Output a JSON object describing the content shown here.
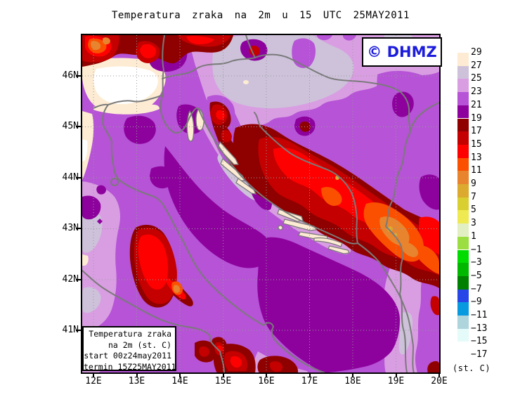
{
  "title": "Temperatura zraka na 2m u 15 UTC 25MAY2011",
  "watermark": {
    "text": "© DHMZ",
    "color": "#1c1cdc"
  },
  "info_box": {
    "lines": [
      "Temperatura zraka",
      "na 2m (st. C)",
      "start 00z24may2011",
      "termin 15Z25MAY2011"
    ]
  },
  "axes": {
    "lat_labels": [
      "46N",
      "45N",
      "44N",
      "43N",
      "42N",
      "41N"
    ],
    "lon_labels": [
      "12E",
      "13E",
      "14E",
      "15E",
      "16E",
      "17E",
      "18E",
      "19E",
      "20E"
    ]
  },
  "legend": {
    "unit_label": "(st. C)",
    "boundaries": [
      29,
      27,
      25,
      23,
      21,
      19,
      17,
      15,
      13,
      11,
      9,
      7,
      5,
      3,
      1,
      -1,
      -3,
      -5,
      -7,
      -9,
      -11,
      -13,
      -15,
      -17
    ],
    "band_order_top_to_bottom": [
      "white",
      "cream",
      "graylav",
      "ltorchid",
      "mdorchid",
      "dkpurple",
      "maroon",
      "dkred",
      "red",
      "orangered",
      "orange",
      "goldenrod",
      "dkyellow",
      "yellow",
      "palegreen",
      "yellowgreen",
      "brightgreen",
      "green",
      "dkgreen",
      "blue",
      "azure",
      "palebluegray",
      "palecyan",
      "white",
      "white"
    ],
    "band_colors": {
      "white": "#ffffff",
      "cream": "#fdecd3",
      "graylav": "#cdc2da",
      "ltorchid": "#d99ee2",
      "mdorchid": "#b653d6",
      "dkpurple": "#8d029d",
      "maroon": "#8f0000",
      "dkred": "#c40000",
      "red": "#fe0000",
      "orangered": "#fa5000",
      "orange": "#e8832e",
      "goldenrod": "#dcaa2e",
      "dkyellow": "#d9cf30",
      "yellow": "#efe952",
      "palegreen": "#e2efc2",
      "yellowgreen": "#9ade42",
      "brightgreen": "#00dc00",
      "green": "#00b800",
      "dkgreen": "#008000",
      "blue": "#2646e8",
      "azure": "#089ade",
      "palebluegray": "#aed4dc",
      "palecyan": "#e4fbf9"
    }
  },
  "map_colors": {
    "border": "#7a7a7a",
    "grid": "#9a9a9a",
    "frame": "#000000"
  },
  "chart_data": {
    "type": "heatmap",
    "subtype": "filled-contour temperature map",
    "title": "Temperatura zraka na 2m u 15 UTC 25MAY2011",
    "unit": "st. C",
    "x_ticks": [
      "12E",
      "13E",
      "14E",
      "15E",
      "16E",
      "17E",
      "18E",
      "19E",
      "20E"
    ],
    "y_ticks": [
      "46N",
      "45N",
      "44N",
      "43N",
      "42N",
      "41N"
    ],
    "contour_interval": 2,
    "contour_boundaries": [
      29,
      27,
      25,
      23,
      21,
      19,
      17,
      15,
      13,
      11,
      9,
      7,
      5,
      3,
      1,
      -1,
      -3,
      -5,
      -7,
      -9,
      -11,
      -13,
      -15,
      -17
    ],
    "band_colors_top_to_bottom": [
      "#ffffff",
      "#fdecd3",
      "#cdc2da",
      "#d99ee2",
      "#b653d6",
      "#8d029d",
      "#8f0000",
      "#c40000",
      "#fe0000",
      "#fa5000",
      "#e8832e",
      "#dcaa2e",
      "#d9cf30",
      "#efe952",
      "#e2efc2",
      "#9ade42",
      "#00dc00",
      "#00b800",
      "#008000",
      "#2646e8",
      "#089ade",
      "#aed4dc",
      "#e4fbf9",
      "#ffffff",
      "#ffffff"
    ],
    "legend_position": "right",
    "grid": "dotted, 1 deg spacing",
    "features": [
      "Po valley / NE Italy hottest area above 29 (white) ringed by 27-29 (cream)",
      "Most land 21-25 (orchid purples), Slavonia/NE 23-27 (light orchid + pale lavender)",
      "Adriatic sea 19-21 (dark purple), two large masses north and south",
      "Alps (top-left) cold blobs 9-19 (maroon/red/orange)",
      "Dinaric mountain belt from Lika across Bosnia to Montenegro 9-19 (maroon/dark red/red with orange-red and orange cores)",
      "Apennines (Italy, lower-left) cold cluster 11-19",
      "Small cold blobs along bottom edge (southern Apennines) 13-19"
    ]
  }
}
